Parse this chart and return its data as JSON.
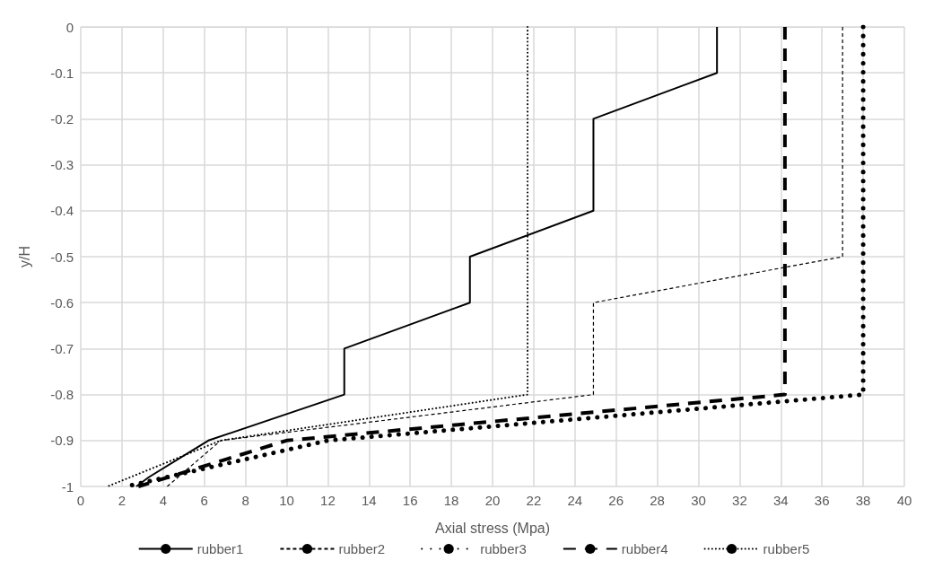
{
  "chart_data": {
    "type": "line",
    "xlabel": "Axial stress (Mpa)",
    "ylabel": "y/H",
    "xlim": [
      0,
      40
    ],
    "xticks": [
      0,
      2,
      4,
      6,
      8,
      10,
      12,
      14,
      16,
      18,
      20,
      22,
      24,
      26,
      28,
      30,
      32,
      34,
      36,
      38,
      40
    ],
    "ylim": [
      -1,
      0
    ],
    "yticks": [
      -1,
      -0.9,
      -0.8,
      -0.7,
      -0.6,
      -0.5,
      -0.4,
      -0.3,
      -0.2,
      -0.1,
      0
    ],
    "grid": true,
    "legend": "bottom",
    "marker": "none",
    "series": [
      {
        "name": "rubber1",
        "color": "#000000",
        "line_style": "solid",
        "x": [
          30.9,
          30.9,
          24.9,
          24.9,
          18.9,
          18.9,
          12.8,
          12.8,
          6.2,
          3.3,
          2.7
        ],
        "values": [
          0,
          -0.1,
          -0.2,
          -0.4,
          -0.5,
          -0.6,
          -0.7,
          -0.8,
          -0.9,
          -0.98,
          -1
        ]
      },
      {
        "name": "rubber2",
        "color": "#000000",
        "line_style": "dashed",
        "x": [
          37,
          37,
          24.9,
          24.9,
          6.8,
          4.2
        ],
        "values": [
          0,
          -0.5,
          -0.6,
          -0.8,
          -0.9,
          -1
        ]
      },
      {
        "name": "rubber3",
        "color": "#000000",
        "line_style": "dotted",
        "x": [
          38,
          38,
          12,
          2.2
        ],
        "values": [
          0,
          -0.8,
          -0.9,
          -1
        ]
      },
      {
        "name": "rubber4",
        "color": "#000000",
        "line_style": "dashed",
        "x": [
          34.2,
          34.2,
          10,
          2.8
        ],
        "values": [
          0,
          -0.8,
          -0.9,
          -1
        ]
      },
      {
        "name": "rubber5",
        "color": "#000000",
        "line_style": "dotted",
        "x": [
          21.7,
          21.7,
          6.8,
          1.3
        ],
        "values": [
          0,
          -0.8,
          -0.9,
          -1
        ]
      }
    ]
  }
}
